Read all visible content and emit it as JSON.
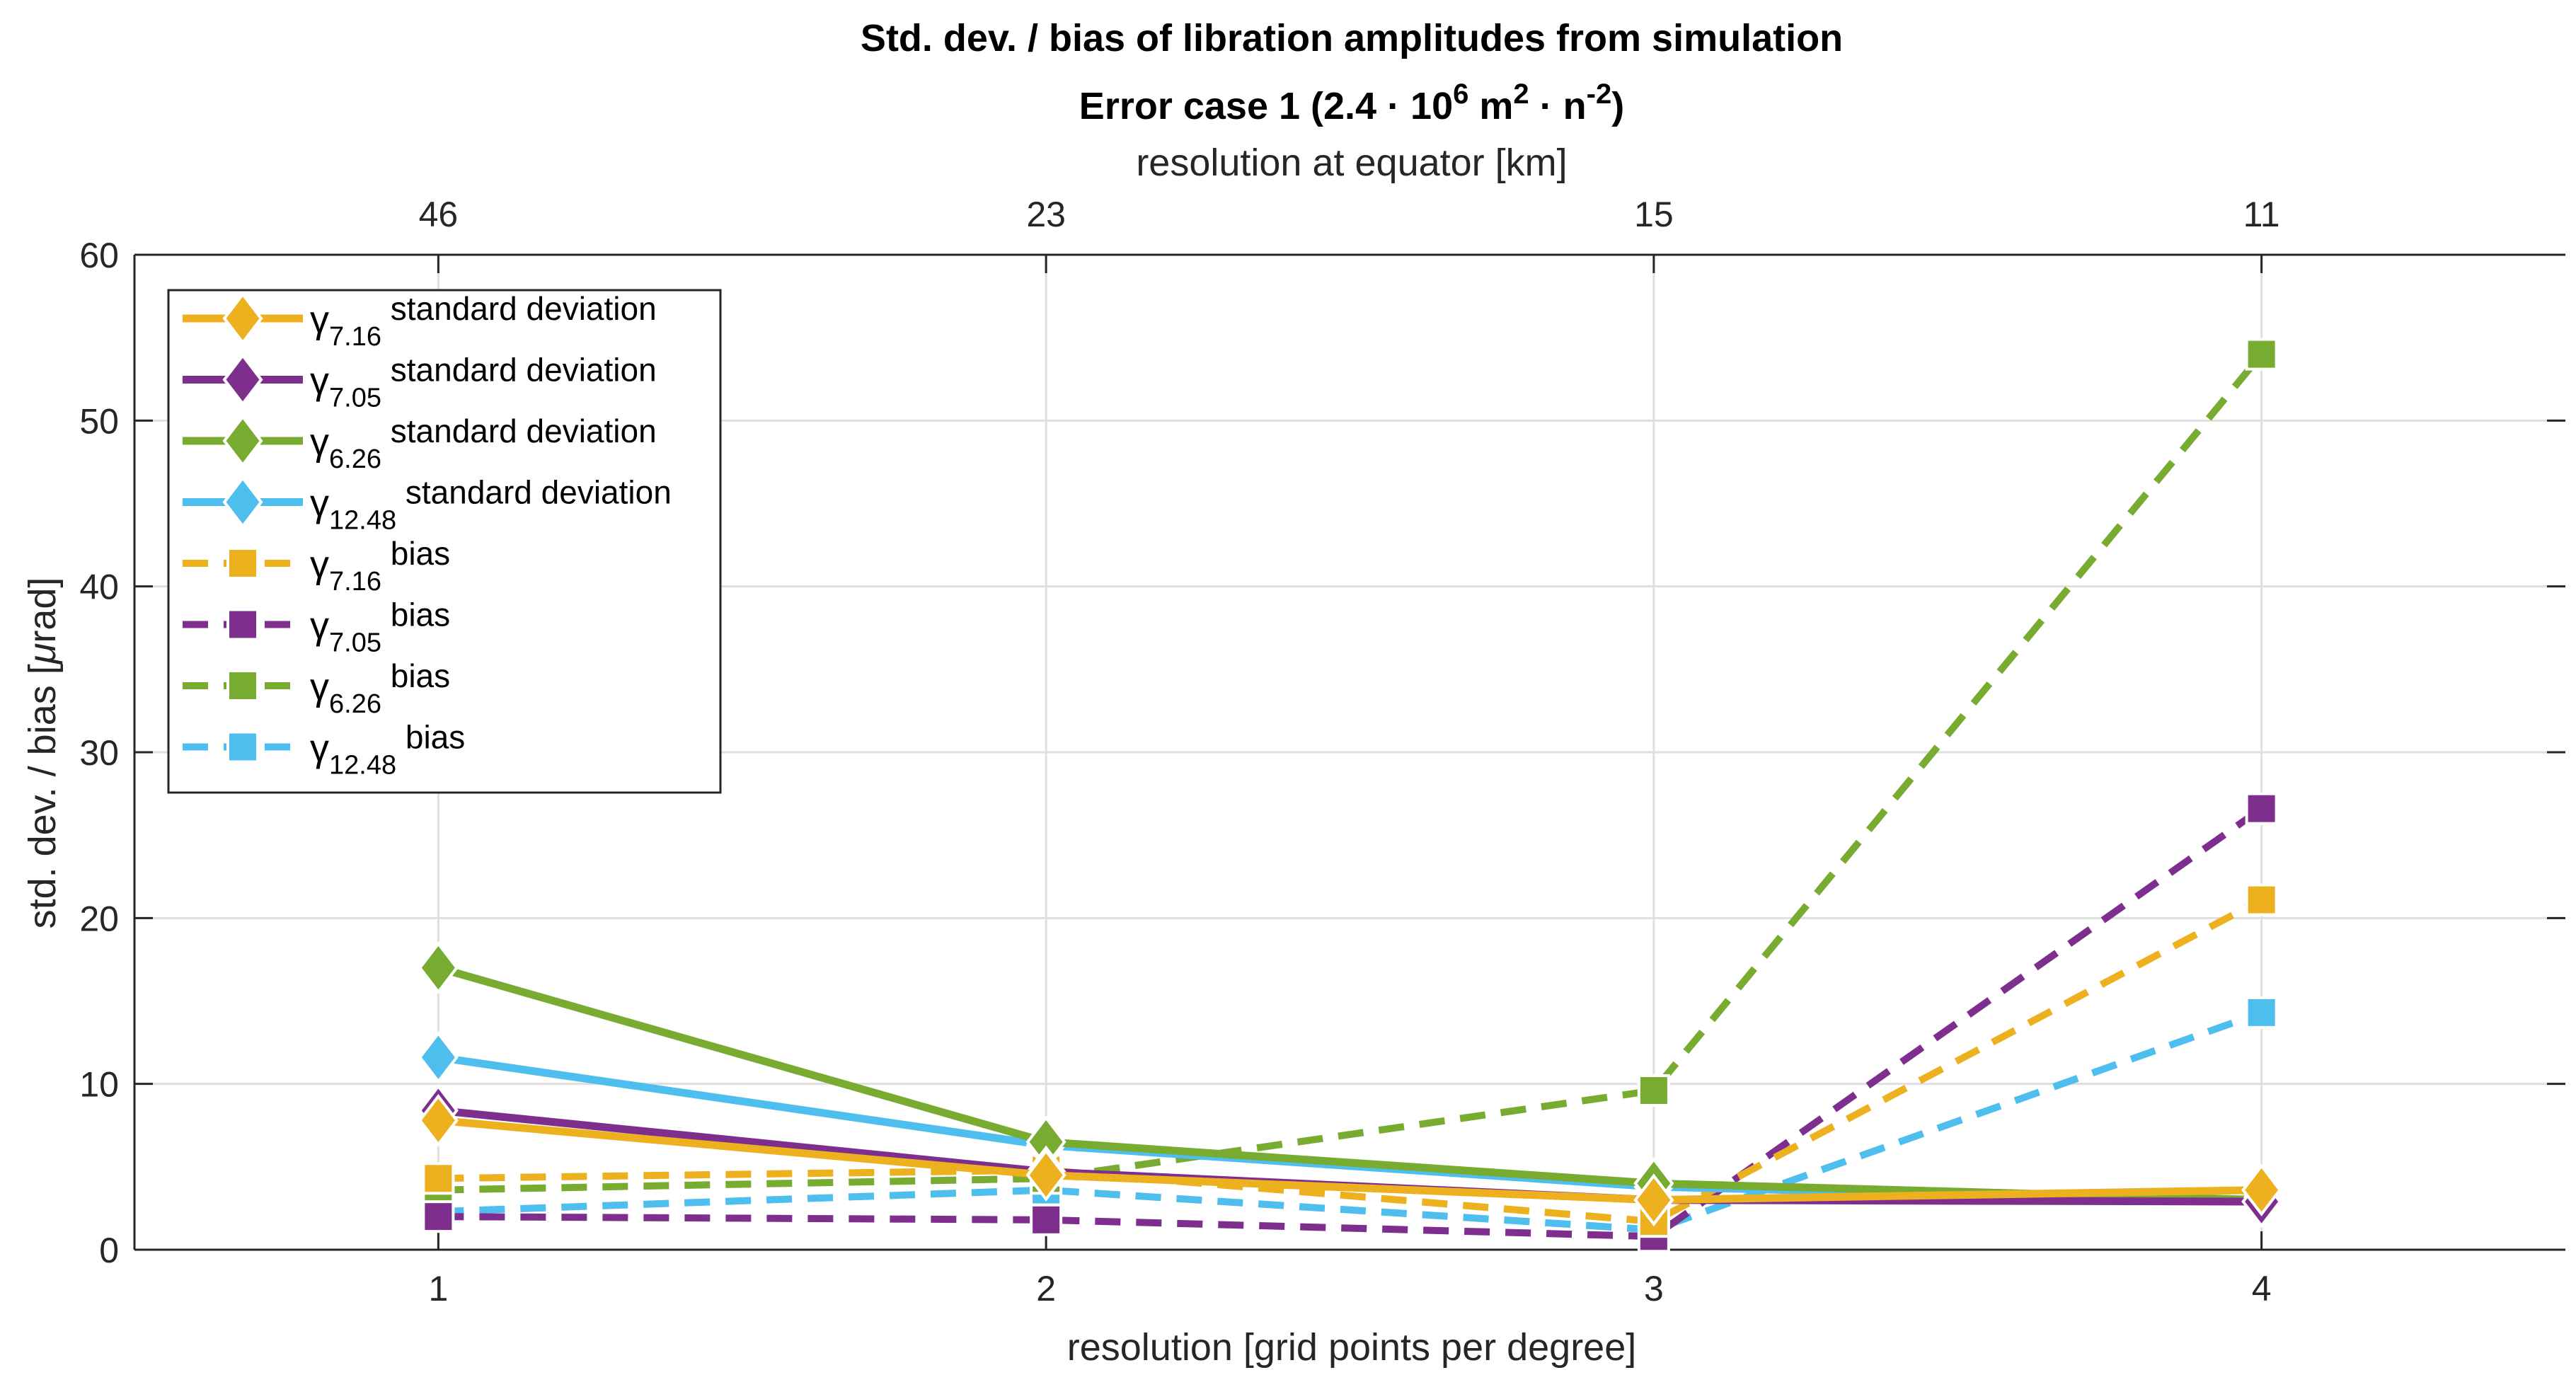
{
  "chart_data": {
    "type": "line",
    "title": "Std. dev. / bias of libration amplitudes from simulation",
    "subtitle": {
      "prefix": "Error case 1 (2.4 · 10",
      "exp1": "6",
      "mid1": " m",
      "exp2": "2",
      "mid2": " · n",
      "exp3": "-2",
      "suffix": ")"
    },
    "xlabel": "resolution [grid points per degree]",
    "x2label": "resolution at equator [km]",
    "ylabel": "std. dev. / bias [",
    "ylabel_mu": "μ",
    "ylabel_suffix": "rad]",
    "x": [
      1,
      2,
      3,
      4
    ],
    "xlim": [
      0.5,
      4.5
    ],
    "ylim": [
      0,
      60
    ],
    "x_ticks": [
      "1",
      "2",
      "3",
      "4"
    ],
    "x2_ticks": [
      "46",
      "23",
      "15",
      "11"
    ],
    "y_ticks": [
      "0",
      "10",
      "20",
      "30",
      "40",
      "50",
      "60"
    ],
    "grid": true,
    "legend_position": "top-left",
    "series": [
      {
        "symbol": "γ",
        "sub": "7.16",
        "label": "standard deviation",
        "color": "#EDB120",
        "marker": "diamond",
        "dash": false,
        "values": [
          7.8,
          4.5,
          3.0,
          3.6
        ]
      },
      {
        "symbol": "γ",
        "sub": "7.05",
        "label": "standard deviation",
        "color": "#7E2F8E",
        "marker": "diamond",
        "dash": false,
        "values": [
          8.4,
          4.7,
          3.0,
          2.9
        ]
      },
      {
        "symbol": "γ",
        "sub": "6.26",
        "label": "standard deviation",
        "color": "#77AC30",
        "marker": "diamond",
        "dash": false,
        "values": [
          17.0,
          6.5,
          4.0,
          3.0
        ]
      },
      {
        "symbol": "γ",
        "sub": "12.48",
        "label": "standard deviation",
        "color": "#4DBEEE",
        "marker": "diamond",
        "dash": false,
        "values": [
          11.6,
          6.3,
          3.8,
          2.9
        ]
      },
      {
        "symbol": "γ",
        "sub": "7.16",
        "label": "bias",
        "color": "#EDB120",
        "marker": "square",
        "dash": true,
        "values": [
          4.3,
          4.8,
          1.7,
          21.1
        ]
      },
      {
        "symbol": "γ",
        "sub": "7.05",
        "label": "bias",
        "color": "#7E2F8E",
        "marker": "square",
        "dash": true,
        "values": [
          2.0,
          1.8,
          0.8,
          26.6
        ]
      },
      {
        "symbol": "γ",
        "sub": "6.26",
        "label": "bias",
        "color": "#77AC30",
        "marker": "square",
        "dash": true,
        "values": [
          3.6,
          4.3,
          9.6,
          54.0
        ]
      },
      {
        "symbol": "γ",
        "sub": "12.48",
        "label": "bias",
        "color": "#4DBEEE",
        "marker": "square",
        "dash": true,
        "values": [
          2.3,
          3.6,
          1.2,
          14.3
        ]
      }
    ]
  }
}
